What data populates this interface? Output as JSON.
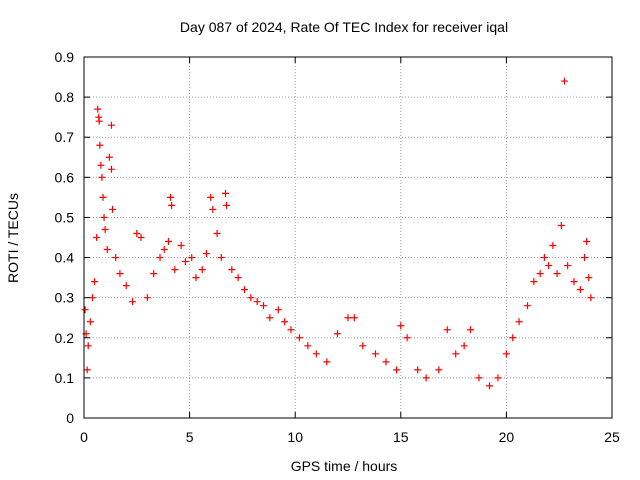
{
  "chart_data": {
    "type": "scatter",
    "title": "Day 087 of 2024, Rate Of TEC Index for receiver iqal",
    "xlabel": "GPS time / hours",
    "ylabel": "ROTI / TECUs",
    "xlim": [
      0,
      25
    ],
    "ylim": [
      0,
      0.9
    ],
    "xticks": [
      0,
      5,
      10,
      15,
      20,
      25
    ],
    "xtick_labels": [
      "0",
      "5",
      "10",
      "15",
      "20",
      "25"
    ],
    "yticks": [
      0,
      0.1,
      0.2,
      0.3,
      0.4,
      0.5,
      0.6,
      0.7,
      0.8,
      0.9
    ],
    "ytick_labels": [
      "0",
      "0.1",
      "0.2",
      "0.3",
      "0.4",
      "0.5",
      "0.6",
      "0.7",
      "0.8",
      "0.9"
    ],
    "grid": true,
    "marker": "+",
    "marker_color": "#ff0000",
    "series": [
      {
        "name": "ROTI",
        "points": [
          [
            0.05,
            0.27
          ],
          [
            0.1,
            0.21
          ],
          [
            0.15,
            0.12
          ],
          [
            0.2,
            0.18
          ],
          [
            0.3,
            0.24
          ],
          [
            0.4,
            0.3
          ],
          [
            0.5,
            0.34
          ],
          [
            0.6,
            0.45
          ],
          [
            0.65,
            0.77
          ],
          [
            0.7,
            0.75
          ],
          [
            0.72,
            0.74
          ],
          [
            0.75,
            0.68
          ],
          [
            0.8,
            0.63
          ],
          [
            0.85,
            0.6
          ],
          [
            0.9,
            0.55
          ],
          [
            0.95,
            0.5
          ],
          [
            1.0,
            0.47
          ],
          [
            1.1,
            0.42
          ],
          [
            1.2,
            0.65
          ],
          [
            1.3,
            0.73
          ],
          [
            1.3,
            0.62
          ],
          [
            1.35,
            0.52
          ],
          [
            1.5,
            0.4
          ],
          [
            1.7,
            0.36
          ],
          [
            2.0,
            0.33
          ],
          [
            2.3,
            0.29
          ],
          [
            2.5,
            0.46
          ],
          [
            2.7,
            0.45
          ],
          [
            3.0,
            0.3
          ],
          [
            3.3,
            0.36
          ],
          [
            3.6,
            0.4
          ],
          [
            3.8,
            0.42
          ],
          [
            4.0,
            0.44
          ],
          [
            4.1,
            0.55
          ],
          [
            4.15,
            0.53
          ],
          [
            4.3,
            0.37
          ],
          [
            4.6,
            0.43
          ],
          [
            4.8,
            0.39
          ],
          [
            5.1,
            0.4
          ],
          [
            5.3,
            0.35
          ],
          [
            5.6,
            0.37
          ],
          [
            5.8,
            0.41
          ],
          [
            6.0,
            0.55
          ],
          [
            6.1,
            0.52
          ],
          [
            6.3,
            0.46
          ],
          [
            6.5,
            0.4
          ],
          [
            6.7,
            0.56
          ],
          [
            6.75,
            0.53
          ],
          [
            7.0,
            0.37
          ],
          [
            7.3,
            0.35
          ],
          [
            7.6,
            0.32
          ],
          [
            7.9,
            0.3
          ],
          [
            8.2,
            0.29
          ],
          [
            8.5,
            0.28
          ],
          [
            8.8,
            0.25
          ],
          [
            9.2,
            0.27
          ],
          [
            9.5,
            0.24
          ],
          [
            9.8,
            0.22
          ],
          [
            10.2,
            0.2
          ],
          [
            10.6,
            0.18
          ],
          [
            11.0,
            0.16
          ],
          [
            11.5,
            0.14
          ],
          [
            12.0,
            0.21
          ],
          [
            12.5,
            0.25
          ],
          [
            12.8,
            0.25
          ],
          [
            13.2,
            0.18
          ],
          [
            13.8,
            0.16
          ],
          [
            14.3,
            0.14
          ],
          [
            14.8,
            0.12
          ],
          [
            15.0,
            0.23
          ],
          [
            15.3,
            0.2
          ],
          [
            15.8,
            0.12
          ],
          [
            16.2,
            0.1
          ],
          [
            16.8,
            0.12
          ],
          [
            17.2,
            0.22
          ],
          [
            17.6,
            0.16
          ],
          [
            18.0,
            0.18
          ],
          [
            18.3,
            0.22
          ],
          [
            18.7,
            0.1
          ],
          [
            19.2,
            0.08
          ],
          [
            19.6,
            0.1
          ],
          [
            20.0,
            0.16
          ],
          [
            20.3,
            0.2
          ],
          [
            20.6,
            0.24
          ],
          [
            21.0,
            0.28
          ],
          [
            21.3,
            0.34
          ],
          [
            21.6,
            0.36
          ],
          [
            21.8,
            0.4
          ],
          [
            22.0,
            0.38
          ],
          [
            22.2,
            0.43
          ],
          [
            22.4,
            0.36
          ],
          [
            22.6,
            0.48
          ],
          [
            22.75,
            0.84
          ],
          [
            22.9,
            0.38
          ],
          [
            23.2,
            0.34
          ],
          [
            23.5,
            0.32
          ],
          [
            23.7,
            0.4
          ],
          [
            23.8,
            0.44
          ],
          [
            23.9,
            0.35
          ],
          [
            24.0,
            0.3
          ]
        ]
      }
    ]
  }
}
